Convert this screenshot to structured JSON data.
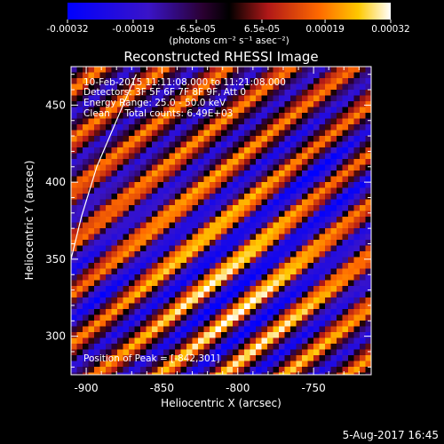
{
  "chart_data": {
    "type": "heatmap",
    "title": "Reconstructed RHESSI Image",
    "xlabel": "Heliocentric X (arcsec)",
    "ylabel": "Heliocentric Y (arcsec)",
    "xlim": [
      -910,
      -712
    ],
    "ylim": [
      275,
      475
    ],
    "x_ticks": [
      -900,
      -850,
      -800,
      -750
    ],
    "x_tick_labels": [
      "-900",
      "-850",
      "-800",
      "-750"
    ],
    "y_ticks": [
      300,
      350,
      400,
      450
    ],
    "y_tick_labels": [
      "300",
      "350",
      "400",
      "450"
    ],
    "colorbar": {
      "range": [
        -0.00032,
        0.00032
      ],
      "ticks": [
        -0.00032,
        -0.00019,
        -6.5e-05,
        6.5e-05,
        0.00019,
        0.00032
      ],
      "tick_labels": [
        "-0.00032",
        "-0.00019",
        "-6.5e-05",
        "6.5e-05",
        "0.00019",
        "0.00032"
      ],
      "unit_label": "(photons cm⁻² s⁻¹ asec⁻²)"
    },
    "annotations": [
      "10-Feb-2015 11:11:08.000 to 11:21:08.000",
      "Detectors: 3F 5F 6F 7F 8F 9F, Att 0",
      "Energy Range: 25.0 - 50.0 keV",
      "Clean     Total counts: 6.49E+03"
    ],
    "peak_label": "Position of Peak = [-842,301]",
    "limb_curve": [
      [
        -910,
        350
      ],
      [
        -903,
        378
      ],
      [
        -893,
        410
      ],
      [
        -880,
        440
      ],
      [
        -867,
        470
      ]
    ],
    "pattern": "diagonal stripes rising to the upper right, bright yellow/white bands concentrated in the lower middle, blue bands toward the upper right and left"
  },
  "footer": {
    "timestamp": "5-Aug-2017 16:45"
  }
}
